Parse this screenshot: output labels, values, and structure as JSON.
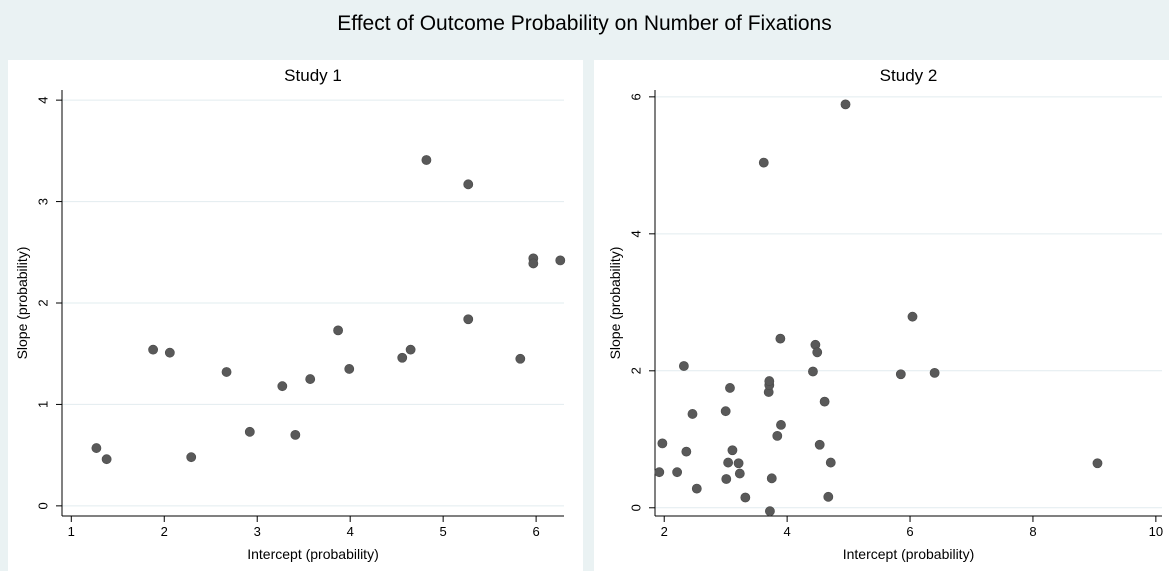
{
  "figure": {
    "title": "Effect of Outcome Probability on Number of Fixations",
    "background": "#eaf2f3",
    "panel_bg": "#ffffff",
    "grid_color": "#e2ecef",
    "point_color": "#595959"
  },
  "chart_data": [
    {
      "type": "scatter",
      "title": "Study 1",
      "xlabel": "Intercept (probability)",
      "ylabel": "Slope (probability)",
      "xlim": [
        0.9,
        6.3
      ],
      "ylim": [
        -0.1,
        4.1
      ],
      "xticks": [
        1,
        2,
        3,
        4,
        5,
        6
      ],
      "yticks": [
        0,
        1,
        2,
        3,
        4
      ],
      "grid": true,
      "points": [
        {
          "x": 1.27,
          "y": 0.57
        },
        {
          "x": 1.38,
          "y": 0.46
        },
        {
          "x": 1.88,
          "y": 1.54
        },
        {
          "x": 2.06,
          "y": 1.51
        },
        {
          "x": 2.29,
          "y": 0.48
        },
        {
          "x": 2.67,
          "y": 1.32
        },
        {
          "x": 2.92,
          "y": 0.73
        },
        {
          "x": 3.27,
          "y": 1.18
        },
        {
          "x": 3.41,
          "y": 0.7
        },
        {
          "x": 3.57,
          "y": 1.25
        },
        {
          "x": 3.87,
          "y": 1.73
        },
        {
          "x": 3.99,
          "y": 1.35
        },
        {
          "x": 4.56,
          "y": 1.46
        },
        {
          "x": 4.65,
          "y": 1.54
        },
        {
          "x": 4.82,
          "y": 3.41
        },
        {
          "x": 5.27,
          "y": 3.17
        },
        {
          "x": 5.27,
          "y": 1.84
        },
        {
          "x": 5.83,
          "y": 1.45
        },
        {
          "x": 5.97,
          "y": 2.44
        },
        {
          "x": 5.97,
          "y": 2.39
        },
        {
          "x": 6.26,
          "y": 2.42
        }
      ]
    },
    {
      "type": "scatter",
      "title": "Study 2",
      "xlabel": "Intercept (probability)",
      "ylabel": "Slope (probability)",
      "xlim": [
        1.85,
        10.1
      ],
      "ylim": [
        -0.12,
        6.1
      ],
      "xticks": [
        2,
        4,
        6,
        8,
        10
      ],
      "yticks": [
        0,
        2,
        4,
        6
      ],
      "grid": true,
      "points": [
        {
          "x": 1.92,
          "y": 0.52
        },
        {
          "x": 1.97,
          "y": 0.94
        },
        {
          "x": 2.21,
          "y": 0.52
        },
        {
          "x": 2.32,
          "y": 2.07
        },
        {
          "x": 2.36,
          "y": 0.82
        },
        {
          "x": 2.46,
          "y": 1.37
        },
        {
          "x": 2.53,
          "y": 0.28
        },
        {
          "x": 3.0,
          "y": 1.41
        },
        {
          "x": 3.01,
          "y": 0.42
        },
        {
          "x": 3.04,
          "y": 0.66
        },
        {
          "x": 3.07,
          "y": 1.75
        },
        {
          "x": 3.11,
          "y": 0.84
        },
        {
          "x": 3.21,
          "y": 0.65
        },
        {
          "x": 3.23,
          "y": 0.5
        },
        {
          "x": 3.32,
          "y": 0.15
        },
        {
          "x": 3.62,
          "y": 5.04
        },
        {
          "x": 3.7,
          "y": 1.69
        },
        {
          "x": 3.71,
          "y": 1.79
        },
        {
          "x": 3.71,
          "y": 1.85
        },
        {
          "x": 3.72,
          "y": -0.05
        },
        {
          "x": 3.75,
          "y": 0.43
        },
        {
          "x": 3.84,
          "y": 1.05
        },
        {
          "x": 3.89,
          "y": 2.47
        },
        {
          "x": 3.9,
          "y": 1.21
        },
        {
          "x": 4.42,
          "y": 1.99
        },
        {
          "x": 4.46,
          "y": 2.38
        },
        {
          "x": 4.49,
          "y": 2.27
        },
        {
          "x": 4.53,
          "y": 0.92
        },
        {
          "x": 4.61,
          "y": 1.55
        },
        {
          "x": 4.67,
          "y": 0.16
        },
        {
          "x": 4.71,
          "y": 0.66
        },
        {
          "x": 4.95,
          "y": 5.89
        },
        {
          "x": 5.85,
          "y": 1.95
        },
        {
          "x": 6.04,
          "y": 2.79
        },
        {
          "x": 6.4,
          "y": 1.97
        },
        {
          "x": 9.05,
          "y": 0.65
        }
      ]
    }
  ]
}
